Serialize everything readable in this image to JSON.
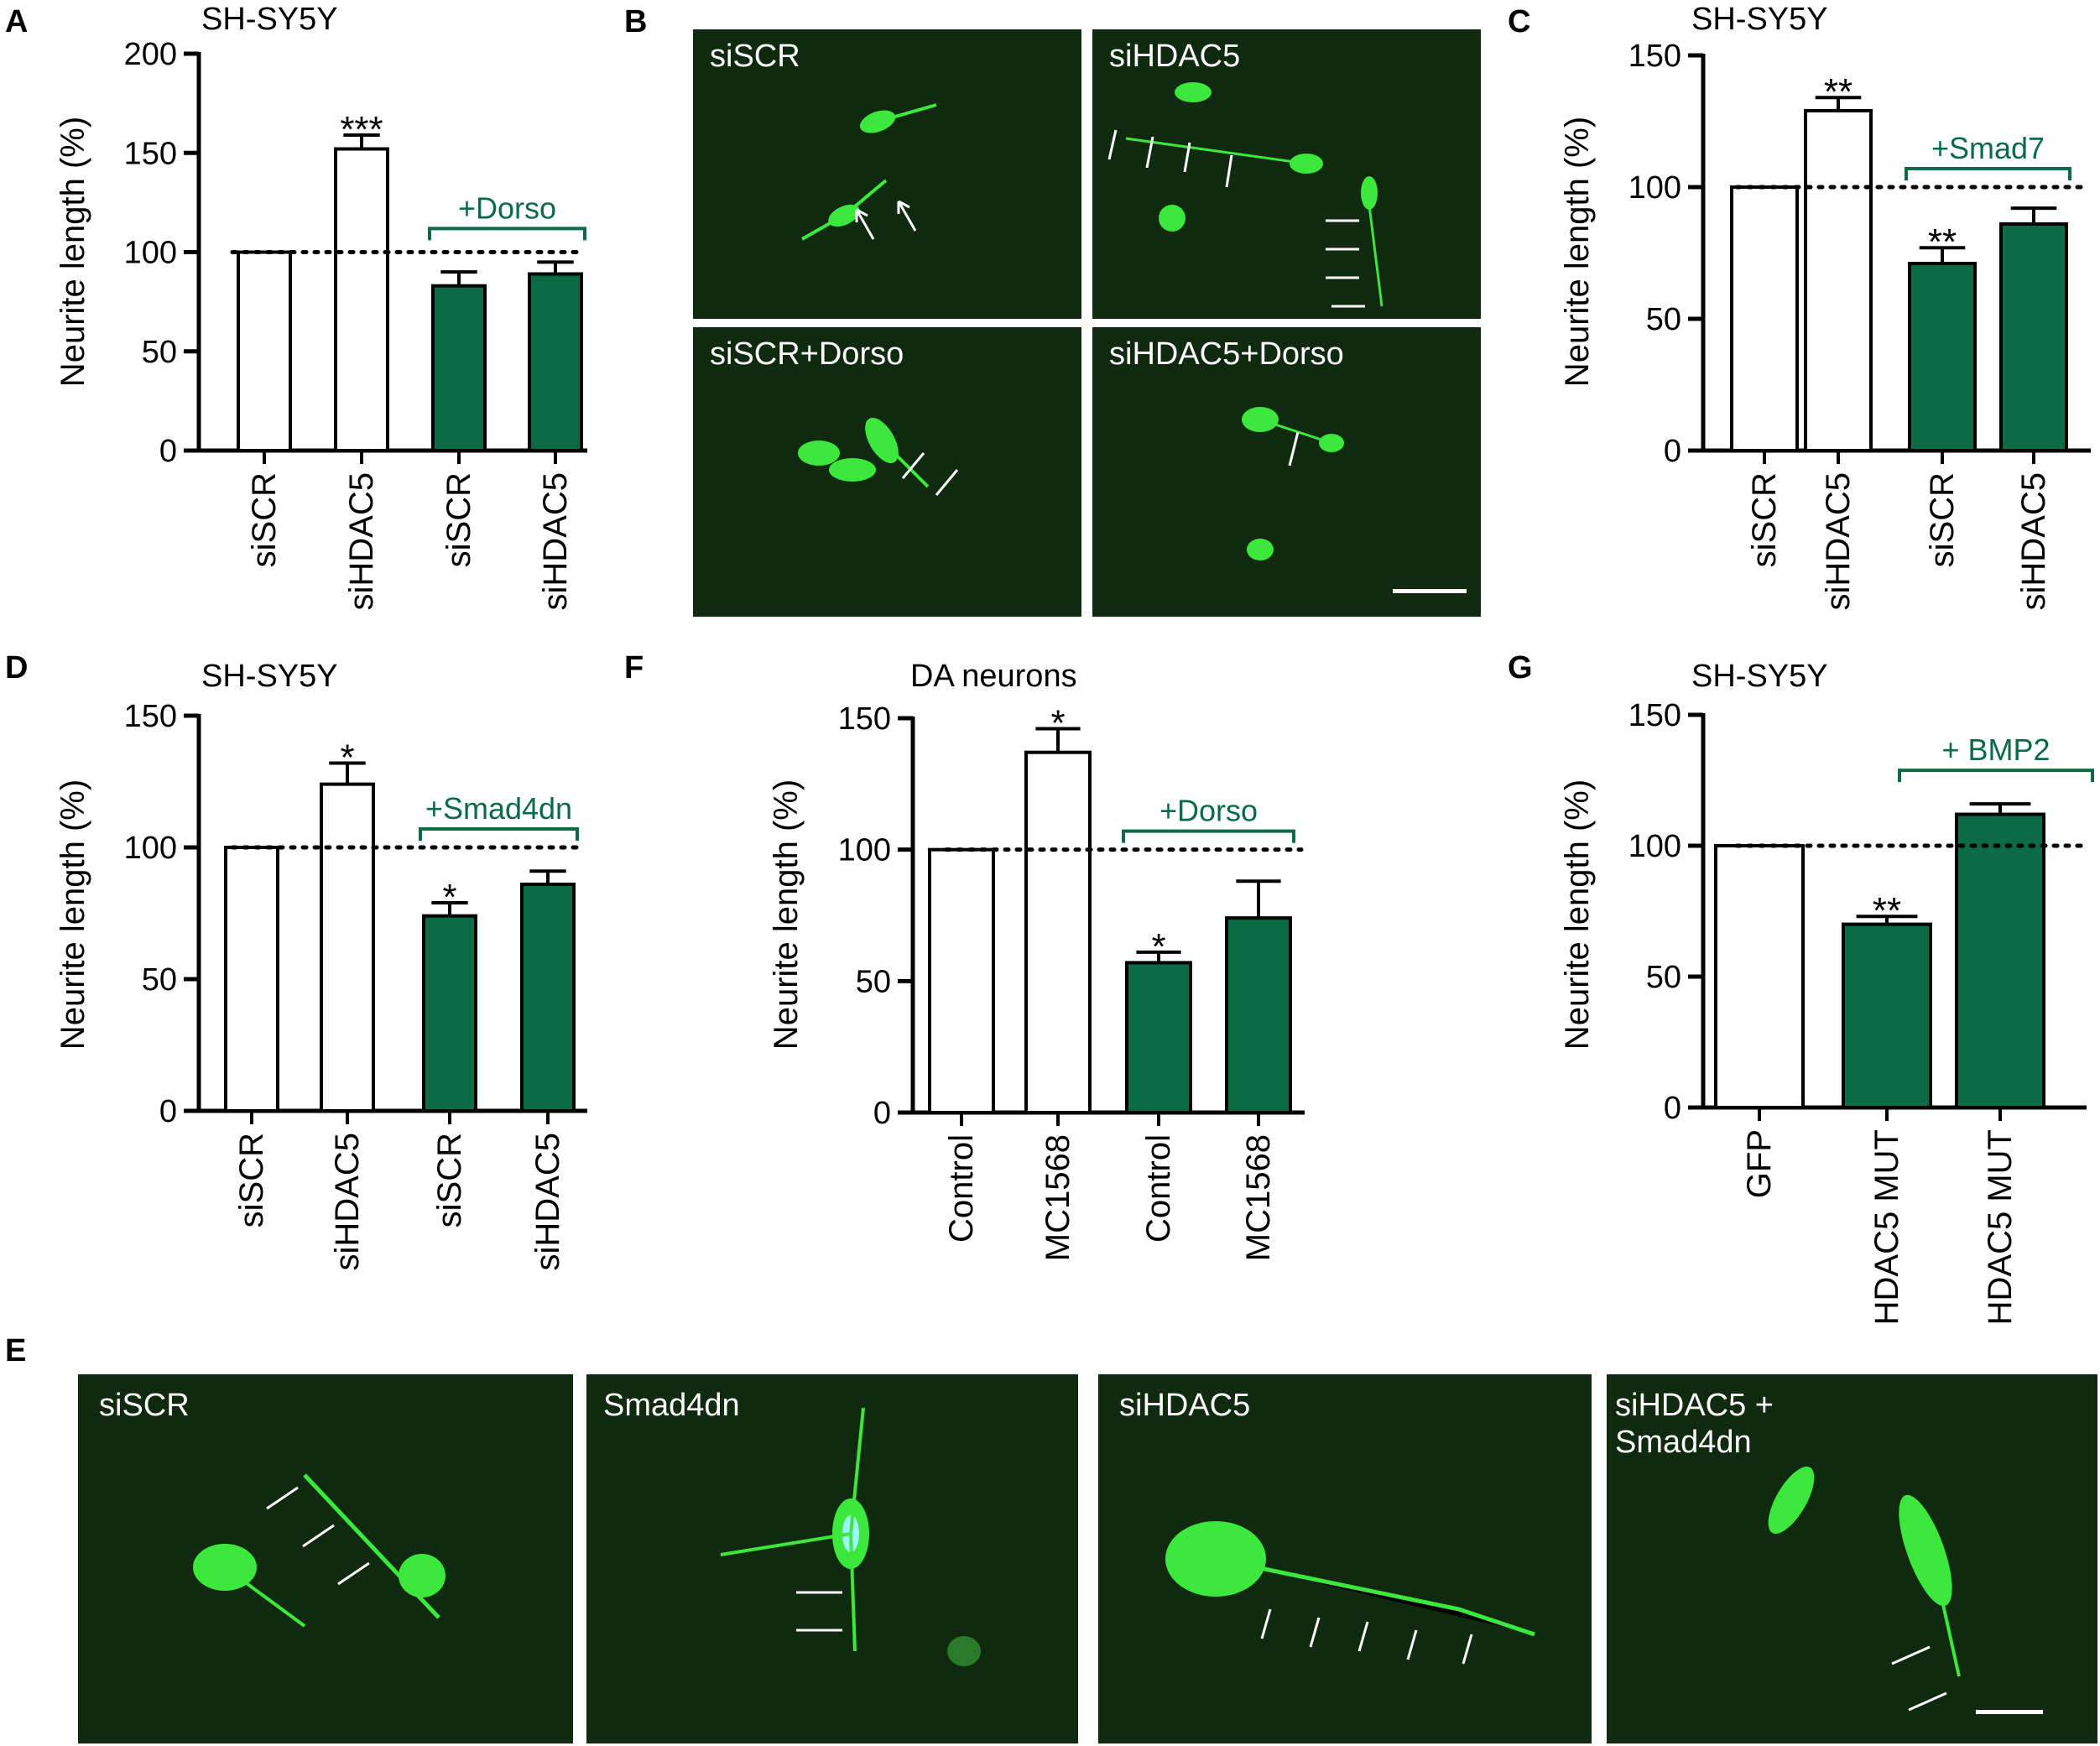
{
  "colors": {
    "dark_green": "#0a6b46",
    "bracket_green": "#0a6b46",
    "bar_white": "#ffffff",
    "micro_bg": "#0f2a0f",
    "cell_green": "#3be83b",
    "arrow": "#ffffff"
  },
  "panel_letters": {
    "A": "A",
    "B": "B",
    "C": "C",
    "D": "D",
    "E": "E",
    "F": "F",
    "G": "G"
  },
  "chart_data": [
    {
      "panel": "A",
      "type": "bar",
      "title": "SH-SY5Y",
      "ylabel": "Neurite length (%)",
      "ylim": [
        0,
        200
      ],
      "yticks": [
        0,
        50,
        100,
        150,
        200
      ],
      "reference_line": 100,
      "categories": [
        "siSCR",
        "siHDAC5",
        "siSCR",
        "siHDAC5"
      ],
      "values": [
        100,
        152,
        83,
        89
      ],
      "errors": [
        0,
        7,
        7,
        6
      ],
      "fills": [
        "white",
        "white",
        "green",
        "green"
      ],
      "significance": [
        "",
        "***",
        "",
        ""
      ],
      "bracket": {
        "label": "+Dorso",
        "from": 2,
        "to": 3
      }
    },
    {
      "panel": "C",
      "type": "bar",
      "title": "SH-SY5Y",
      "ylabel": "Neurite length (%)",
      "ylim": [
        0,
        150
      ],
      "yticks": [
        0,
        50,
        100,
        150
      ],
      "reference_line": 100,
      "categories": [
        "siSCR",
        "siHDAC5",
        "siSCR",
        "siHDAC5"
      ],
      "values": [
        100,
        129,
        71,
        86
      ],
      "errors": [
        0,
        5,
        6,
        6
      ],
      "fills": [
        "white",
        "white",
        "green",
        "green"
      ],
      "significance": [
        "",
        "**",
        "**",
        ""
      ],
      "bracket": {
        "label": "+Smad7",
        "from": 2,
        "to": 3
      }
    },
    {
      "panel": "D",
      "type": "bar",
      "title": "SH-SY5Y",
      "ylabel": "Neurite length (%)",
      "ylim": [
        0,
        150
      ],
      "yticks": [
        0,
        50,
        100,
        150
      ],
      "reference_line": 100,
      "categories": [
        "siSCR",
        "siHDAC5",
        "siSCR",
        "siHDAC5"
      ],
      "values": [
        100,
        124,
        74,
        86
      ],
      "errors": [
        0,
        8,
        5,
        5
      ],
      "fills": [
        "white",
        "white",
        "green",
        "green"
      ],
      "significance": [
        "",
        "*",
        "*",
        ""
      ],
      "bracket": {
        "label": "+Smad4dn",
        "from": 2,
        "to": 3
      }
    },
    {
      "panel": "F",
      "type": "bar",
      "title": "DA neurons",
      "ylabel": "Neurite length (%)",
      "ylim": [
        0,
        150
      ],
      "yticks": [
        0,
        50,
        100,
        150
      ],
      "reference_line": 100,
      "categories": [
        "Control",
        "MC1568",
        "Control",
        "MC1568"
      ],
      "values": [
        100,
        137,
        57,
        74
      ],
      "errors": [
        0,
        9,
        4,
        14
      ],
      "fills": [
        "white",
        "white",
        "green",
        "green"
      ],
      "significance": [
        "",
        "*",
        "*",
        ""
      ],
      "bracket": {
        "label": "+Dorso",
        "from": 2,
        "to": 3
      }
    },
    {
      "panel": "G",
      "type": "bar",
      "title": "SH-SY5Y",
      "ylabel": "Neurite length (%)",
      "ylim": [
        0,
        150
      ],
      "yticks": [
        0,
        50,
        100,
        150
      ],
      "reference_line": 100,
      "categories": [
        "GFP",
        "HDAC5 MUT",
        "HDAC5 MUT"
      ],
      "values": [
        100,
        70,
        112
      ],
      "errors": [
        0,
        3,
        4
      ],
      "fills": [
        "white",
        "green",
        "green"
      ],
      "significance": [
        "",
        "**",
        ""
      ],
      "bracket": {
        "label": "+ BMP2",
        "from": 2,
        "to": 2
      }
    }
  ],
  "micrographs": {
    "B": [
      "siSCR",
      "siHDAC5",
      "siSCR+Dorso",
      "siHDAC5+Dorso"
    ],
    "E": [
      "siSCR",
      "Smad4dn",
      "siHDAC5",
      "siHDAC5 +\nSmad4dn"
    ]
  }
}
